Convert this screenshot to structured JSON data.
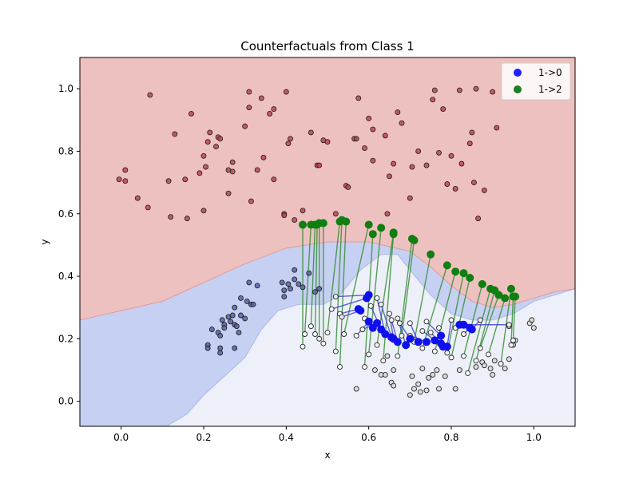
{
  "chart_data": {
    "type": "scatter",
    "title": "Counterfactuals from Class 1",
    "xlabel": "x",
    "ylabel": "y",
    "xlim": [
      -0.1,
      1.1
    ],
    "ylim": [
      -0.08,
      1.1
    ],
    "xticks": [
      "0.0",
      "0.2",
      "0.4",
      "0.6",
      "0.8",
      "1.0"
    ],
    "yticks": [
      "0.0",
      "0.2",
      "0.4",
      "0.6",
      "0.8",
      "1.0"
    ],
    "grid": false,
    "legend_position": "top-right",
    "region_colors": {
      "class0": "#eec1c1",
      "class1": "#c6d0f2",
      "class2": "#edf0f8"
    },
    "class0_boundary": [
      [
        -0.1,
        0.26
      ],
      [
        0.0,
        0.29
      ],
      [
        0.1,
        0.32
      ],
      [
        0.2,
        0.38
      ],
      [
        0.3,
        0.44
      ],
      [
        0.4,
        0.49
      ],
      [
        0.5,
        0.51
      ],
      [
        0.6,
        0.51
      ],
      [
        0.7,
        0.48
      ],
      [
        0.75,
        0.43
      ],
      [
        0.8,
        0.37
      ],
      [
        0.85,
        0.32
      ],
      [
        0.9,
        0.3
      ],
      [
        0.95,
        0.31
      ],
      [
        1.0,
        0.33
      ],
      [
        1.05,
        0.35
      ],
      [
        1.1,
        0.36
      ]
    ],
    "class2_boundary": [
      [
        0.11,
        -0.08
      ],
      [
        0.16,
        -0.04
      ],
      [
        0.2,
        0.02
      ],
      [
        0.25,
        0.08
      ],
      [
        0.3,
        0.14
      ],
      [
        0.34,
        0.23
      ],
      [
        0.38,
        0.29
      ],
      [
        0.43,
        0.31
      ],
      [
        0.49,
        0.31
      ],
      [
        0.53,
        0.34
      ],
      [
        0.58,
        0.42
      ],
      [
        0.63,
        0.47
      ],
      [
        0.67,
        0.47
      ],
      [
        0.7,
        0.42
      ],
      [
        0.75,
        0.34
      ],
      [
        0.8,
        0.28
      ],
      [
        0.85,
        0.26
      ],
      [
        0.9,
        0.26
      ],
      [
        0.95,
        0.28
      ],
      [
        1.0,
        0.32
      ],
      [
        1.05,
        0.34
      ],
      [
        1.1,
        0.36
      ]
    ],
    "class0_points": [
      [
        -0.005,
        0.71
      ],
      [
        0.01,
        0.74
      ],
      [
        0.01,
        0.705
      ],
      [
        0.04,
        0.65
      ],
      [
        0.065,
        0.62
      ],
      [
        0.07,
        0.98
      ],
      [
        0.115,
        0.705
      ],
      [
        0.12,
        0.59
      ],
      [
        0.13,
        0.855
      ],
      [
        0.155,
        0.71
      ],
      [
        0.16,
        0.585
      ],
      [
        0.17,
        0.92
      ],
      [
        0.19,
        0.73
      ],
      [
        0.2,
        0.61
      ],
      [
        0.2,
        0.785
      ],
      [
        0.205,
        0.75
      ],
      [
        0.21,
        0.83
      ],
      [
        0.215,
        0.86
      ],
      [
        0.23,
        0.815
      ],
      [
        0.235,
        0.845
      ],
      [
        0.24,
        0.84
      ],
      [
        0.26,
        0.74
      ],
      [
        0.26,
        0.665
      ],
      [
        0.27,
        0.735
      ],
      [
        0.27,
        0.765
      ],
      [
        0.3,
        0.88
      ],
      [
        0.31,
        0.99
      ],
      [
        0.31,
        0.94
      ],
      [
        0.315,
        0.64
      ],
      [
        0.33,
        0.74
      ],
      [
        0.34,
        0.97
      ],
      [
        0.345,
        0.78
      ],
      [
        0.36,
        0.92
      ],
      [
        0.37,
        0.935
      ],
      [
        0.37,
        0.71
      ],
      [
        0.395,
        0.6
      ],
      [
        0.395,
        0.595
      ],
      [
        0.4,
        0.99
      ],
      [
        0.405,
        0.825
      ],
      [
        0.41,
        0.84
      ],
      [
        0.42,
        0.58
      ],
      [
        0.44,
        0.61
      ],
      [
        0.46,
        0.86
      ],
      [
        0.475,
        0.755
      ],
      [
        0.48,
        0.755
      ],
      [
        0.49,
        0.835
      ],
      [
        0.5,
        0.83
      ],
      [
        0.52,
        0.6
      ],
      [
        0.545,
        0.69
      ],
      [
        0.55,
        0.685
      ],
      [
        0.565,
        0.84
      ],
      [
        0.57,
        0.84
      ],
      [
        0.575,
        0.97
      ],
      [
        0.59,
        0.81
      ],
      [
        0.6,
        0.905
      ],
      [
        0.61,
        0.87
      ],
      [
        0.61,
        0.77
      ],
      [
        0.64,
        0.85
      ],
      [
        0.645,
        0.6
      ],
      [
        0.65,
        0.72
      ],
      [
        0.66,
        0.76
      ],
      [
        0.67,
        0.925
      ],
      [
        0.68,
        0.89
      ],
      [
        0.7,
        0.65
      ],
      [
        0.705,
        0.75
      ],
      [
        0.72,
        0.8
      ],
      [
        0.74,
        0.755
      ],
      [
        0.755,
        0.965
      ],
      [
        0.76,
        0.995
      ],
      [
        0.77,
        0.795
      ],
      [
        0.78,
        0.935
      ],
      [
        0.79,
        0.695
      ],
      [
        0.8,
        0.785
      ],
      [
        0.81,
        0.68
      ],
      [
        0.82,
        0.995
      ],
      [
        0.825,
        0.76
      ],
      [
        0.845,
        0.825
      ],
      [
        0.85,
        0.86
      ],
      [
        0.855,
        0.7
      ],
      [
        0.86,
        1.0
      ],
      [
        0.865,
        0.585
      ],
      [
        0.88,
        0.675
      ],
      [
        0.9,
        0.99
      ],
      [
        0.91,
        0.875
      ]
    ],
    "class1_points": [
      [
        0.21,
        0.18
      ],
      [
        0.21,
        0.17
      ],
      [
        0.22,
        0.23
      ],
      [
        0.235,
        0.22
      ],
      [
        0.24,
        0.21
      ],
      [
        0.24,
        0.17
      ],
      [
        0.24,
        0.155
      ],
      [
        0.245,
        0.26
      ],
      [
        0.25,
        0.245
      ],
      [
        0.25,
        0.235
      ],
      [
        0.26,
        0.27
      ],
      [
        0.265,
        0.255
      ],
      [
        0.27,
        0.275
      ],
      [
        0.275,
        0.245
      ],
      [
        0.275,
        0.3
      ],
      [
        0.275,
        0.17
      ],
      [
        0.28,
        0.24
      ],
      [
        0.285,
        0.22
      ],
      [
        0.29,
        0.33
      ],
      [
        0.29,
        0.275
      ],
      [
        0.3,
        0.265
      ],
      [
        0.305,
        0.32
      ],
      [
        0.31,
        0.38
      ],
      [
        0.315,
        0.31
      ],
      [
        0.32,
        0.31
      ],
      [
        0.33,
        0.37
      ],
      [
        0.39,
        0.38
      ],
      [
        0.395,
        0.355
      ],
      [
        0.395,
        0.335
      ],
      [
        0.405,
        0.375
      ],
      [
        0.41,
        0.36
      ],
      [
        0.42,
        0.42
      ],
      [
        0.42,
        0.39
      ],
      [
        0.43,
        0.375
      ],
      [
        0.44,
        0.365
      ],
      [
        0.455,
        0.41
      ],
      [
        0.47,
        0.35
      ],
      [
        0.48,
        0.36
      ]
    ],
    "class2_points": [
      [
        0.57,
        0.04
      ],
      [
        0.615,
        0.1
      ],
      [
        0.63,
        0.085
      ],
      [
        0.64,
        0.085
      ],
      [
        0.645,
        0.145
      ],
      [
        0.655,
        0.06
      ],
      [
        0.66,
        0.05
      ],
      [
        0.66,
        0.1
      ],
      [
        0.7,
        0.02
      ],
      [
        0.705,
        0.08
      ],
      [
        0.71,
        0.04
      ],
      [
        0.72,
        0.055
      ],
      [
        0.725,
        0.03
      ],
      [
        0.73,
        0.105
      ],
      [
        0.74,
        0.035
      ],
      [
        0.745,
        0.075
      ],
      [
        0.755,
        0.085
      ],
      [
        0.765,
        0.1
      ],
      [
        0.77,
        0.04
      ],
      [
        0.785,
        0.08
      ],
      [
        0.81,
        0.04
      ],
      [
        0.82,
        0.1
      ],
      [
        0.86,
        0.11
      ],
      [
        0.875,
        0.125
      ],
      [
        0.88,
        0.115
      ],
      [
        0.895,
        0.105
      ],
      [
        0.9,
        0.085
      ],
      [
        0.905,
        0.13
      ],
      [
        0.92,
        0.12
      ],
      [
        0.93,
        0.105
      ],
      [
        0.94,
        0.135
      ],
      [
        0.94,
        0.24
      ],
      [
        0.95,
        0.18
      ],
      [
        0.955,
        0.195
      ],
      [
        0.99,
        0.25
      ],
      [
        0.995,
        0.26
      ],
      [
        1.0,
        0.235
      ]
    ],
    "cf_to_0": [
      {
        "from": [
          0.44,
          0.175
        ],
        "to": [
          0.44,
          0.565
        ]
      },
      {
        "from": [
          0.445,
          0.215
        ],
        "to": [
          0.46,
          0.565
        ]
      },
      {
        "from": [
          0.46,
          0.24
        ],
        "to": [
          0.47,
          0.565
        ]
      },
      {
        "from": [
          0.47,
          0.215
        ],
        "to": [
          0.475,
          0.565
        ]
      },
      {
        "from": [
          0.48,
          0.2
        ],
        "to": [
          0.48,
          0.57
        ]
      },
      {
        "from": [
          0.49,
          0.185
        ],
        "to": [
          0.49,
          0.57
        ]
      },
      {
        "from": [
          0.5,
          0.22
        ],
        "to": [
          0.53,
          0.575
        ]
      },
      {
        "from": [
          0.52,
          0.16
        ],
        "to": [
          0.535,
          0.58
        ]
      },
      {
        "from": [
          0.53,
          0.11
        ],
        "to": [
          0.545,
          0.575
        ]
      },
      {
        "from": [
          0.54,
          0.215
        ],
        "to": [
          0.6,
          0.565
        ]
      },
      {
        "from": [
          0.59,
          0.11
        ],
        "to": [
          0.61,
          0.535
        ]
      },
      {
        "from": [
          0.6,
          0.15
        ],
        "to": [
          0.63,
          0.555
        ]
      },
      {
        "from": [
          0.62,
          0.18
        ],
        "to": [
          0.66,
          0.54
        ]
      },
      {
        "from": [
          0.635,
          0.13
        ],
        "to": [
          0.66,
          0.535
        ]
      },
      {
        "from": [
          0.67,
          0.145
        ],
        "to": [
          0.705,
          0.52
        ]
      },
      {
        "from": [
          0.68,
          0.21
        ],
        "to": [
          0.71,
          0.515
        ]
      },
      {
        "from": [
          0.71,
          0.19
        ],
        "to": [
          0.75,
          0.47
        ]
      },
      {
        "from": [
          0.73,
          0.17
        ],
        "to": [
          0.79,
          0.435
        ]
      },
      {
        "from": [
          0.76,
          0.16
        ],
        "to": [
          0.81,
          0.415
        ]
      },
      {
        "from": [
          0.79,
          0.155
        ],
        "to": [
          0.83,
          0.41
        ]
      },
      {
        "from": [
          0.8,
          0.14
        ],
        "to": [
          0.845,
          0.395
        ]
      },
      {
        "from": [
          0.83,
          0.145
        ],
        "to": [
          0.875,
          0.375
        ]
      },
      {
        "from": [
          0.84,
          0.09
        ],
        "to": [
          0.895,
          0.36
        ]
      },
      {
        "from": [
          0.86,
          0.13
        ],
        "to": [
          0.905,
          0.355
        ]
      },
      {
        "from": [
          0.87,
          0.17
        ],
        "to": [
          0.915,
          0.34
        ]
      },
      {
        "from": [
          0.89,
          0.15
        ],
        "to": [
          0.93,
          0.33
        ]
      },
      {
        "from": [
          0.92,
          0.12
        ],
        "to": [
          0.945,
          0.36
        ]
      },
      {
        "from": [
          0.945,
          0.18
        ],
        "to": [
          0.95,
          0.335
        ]
      },
      {
        "from": [
          0.95,
          0.195
        ],
        "to": [
          0.955,
          0.335
        ]
      }
    ],
    "cf_to_2": [
      {
        "from": [
          0.51,
          0.295
        ],
        "to": [
          0.595,
          0.33
        ]
      },
      {
        "from": [
          0.52,
          0.335
        ],
        "to": [
          0.6,
          0.34
        ]
      },
      {
        "from": [
          0.53,
          0.28
        ],
        "to": [
          0.575,
          0.295
        ]
      },
      {
        "from": [
          0.535,
          0.27
        ],
        "to": [
          0.58,
          0.29
        ]
      },
      {
        "from": [
          0.57,
          0.21
        ],
        "to": [
          0.6,
          0.255
        ]
      },
      {
        "from": [
          0.585,
          0.23
        ],
        "to": [
          0.62,
          0.25
        ]
      },
      {
        "from": [
          0.59,
          0.265
        ],
        "to": [
          0.61,
          0.235
        ]
      },
      {
        "from": [
          0.605,
          0.305
        ],
        "to": [
          0.63,
          0.23
        ]
      },
      {
        "from": [
          0.62,
          0.33
        ],
        "to": [
          0.64,
          0.215
        ]
      },
      {
        "from": [
          0.63,
          0.31
        ],
        "to": [
          0.655,
          0.205
        ]
      },
      {
        "from": [
          0.65,
          0.28
        ],
        "to": [
          0.66,
          0.2
        ]
      },
      {
        "from": [
          0.655,
          0.26
        ],
        "to": [
          0.67,
          0.19
        ]
      },
      {
        "from": [
          0.67,
          0.265
        ],
        "to": [
          0.69,
          0.18
        ]
      },
      {
        "from": [
          0.675,
          0.25
        ],
        "to": [
          0.7,
          0.2
        ]
      },
      {
        "from": [
          0.7,
          0.25
        ],
        "to": [
          0.72,
          0.19
        ]
      },
      {
        "from": [
          0.7,
          0.21
        ],
        "to": [
          0.74,
          0.19
        ]
      },
      {
        "from": [
          0.73,
          0.225
        ],
        "to": [
          0.76,
          0.195
        ]
      },
      {
        "from": [
          0.74,
          0.255
        ],
        "to": [
          0.775,
          0.21
        ]
      },
      {
        "from": [
          0.75,
          0.22
        ],
        "to": [
          0.775,
          0.185
        ]
      },
      {
        "from": [
          0.77,
          0.235
        ],
        "to": [
          0.78,
          0.175
        ]
      },
      {
        "from": [
          0.8,
          0.26
        ],
        "to": [
          0.79,
          0.175
        ]
      },
      {
        "from": [
          0.81,
          0.235
        ],
        "to": [
          0.82,
          0.245
        ]
      },
      {
        "from": [
          0.83,
          0.215
        ],
        "to": [
          0.845,
          0.235
        ]
      },
      {
        "from": [
          0.87,
          0.26
        ],
        "to": [
          0.85,
          0.23
        ]
      },
      {
        "from": [
          0.94,
          0.245
        ],
        "to": [
          0.83,
          0.245
        ]
      }
    ],
    "legend": [
      {
        "label": "1->0",
        "color": "#1f1fff"
      },
      {
        "label": "1->2",
        "color": "#1e7f1e"
      }
    ],
    "colors": {
      "class0_face": "#c04650",
      "class1_face": "#5a62a8",
      "class2_face": "#d8d8d8",
      "arrow0": "#3a3ad8",
      "arrow2": "#2e8a2e",
      "cf0": "#1010ee",
      "cf2": "#0f7f0f"
    }
  }
}
